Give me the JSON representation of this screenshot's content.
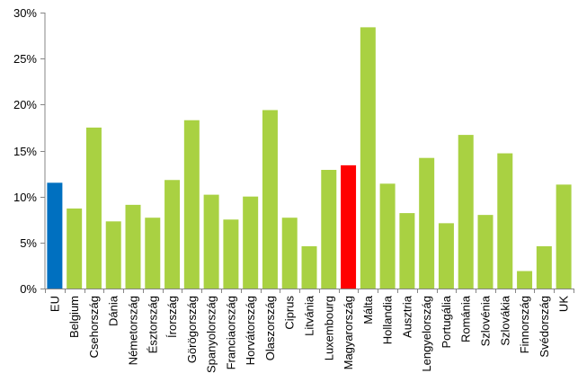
{
  "chart_data": {
    "type": "bar",
    "title": "",
    "xlabel": "",
    "ylabel": "",
    "ylim": [
      0,
      30
    ],
    "yticks": [
      0,
      5,
      10,
      15,
      20,
      25,
      30
    ],
    "ytick_labels": [
      "0%",
      "5%",
      "10%",
      "15%",
      "20%",
      "25%",
      "30%"
    ],
    "grid": false,
    "legend": "none",
    "categories": [
      "EU",
      "Belgium",
      "Csehország",
      "Dánia",
      "Németország",
      "Észtország",
      "Írország",
      "Görögország",
      "Spanyolország",
      "Franciaország",
      "Horvátország",
      "Olaszország",
      "Ciprus",
      "Litvánia",
      "Luxembourg",
      "Magyarország",
      "Málta",
      "Hollandia",
      "Ausztria",
      "Lengyelország",
      "Portugália",
      "Románia",
      "Szlovénia",
      "Szlovákia",
      "Finnország",
      "Svédország",
      "UK"
    ],
    "values": [
      11.5,
      8.7,
      17.5,
      7.3,
      9.1,
      7.7,
      11.8,
      18.3,
      10.2,
      7.5,
      10.0,
      19.4,
      7.7,
      4.6,
      12.9,
      13.4,
      28.4,
      11.4,
      8.2,
      14.2,
      7.1,
      16.7,
      8.0,
      14.7,
      1.9,
      4.6,
      11.3
    ],
    "colors": {
      "default": "#a9d142",
      "highlights": {
        "EU": "#0070c0",
        "Magyarország": "#ff0000"
      }
    }
  }
}
